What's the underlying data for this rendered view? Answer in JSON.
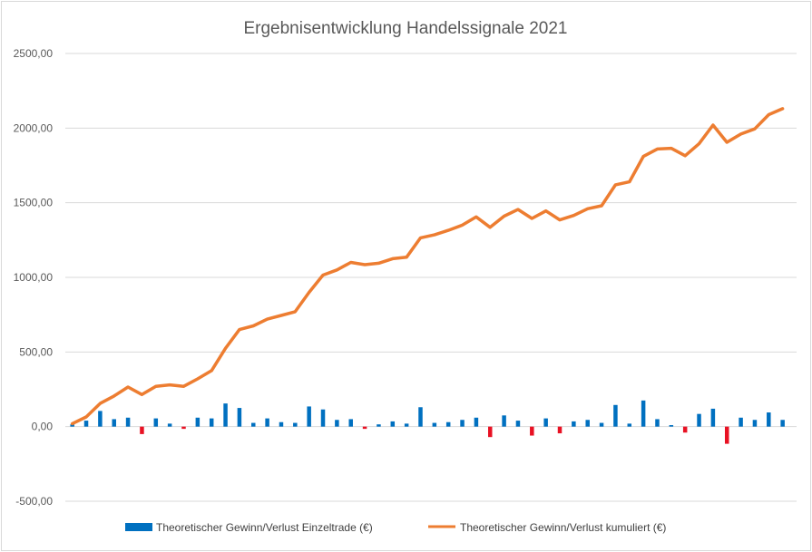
{
  "chart_data": {
    "type": "bar+line",
    "title": "Ergebnisentwicklung Handelssignale 2021",
    "xlabel": "",
    "ylabel": "",
    "ylim": [
      -500,
      2500
    ],
    "yticks": [
      "2500,00",
      "2000,00",
      "1500,00",
      "1000,00",
      "500,00",
      "0,00",
      "-500,00"
    ],
    "ytick_values": [
      2500,
      2000,
      1500,
      1000,
      500,
      0,
      -500
    ],
    "grid": true,
    "legend_position": "bottom",
    "colors": {
      "positive": "#0070c0",
      "negative": "#e81123",
      "line": "#ed7d31",
      "grid": "#d9d9d9",
      "text": "#595959"
    },
    "series": [
      {
        "name": "Theoretischer Gewinn/Verlust Einzeltrade (€)",
        "type": "bar",
        "values": [
          15,
          40,
          105,
          50,
          60,
          -50,
          55,
          20,
          -15,
          60,
          55,
          155,
          125,
          25,
          55,
          30,
          25,
          135,
          115,
          45,
          50,
          -15,
          15,
          35,
          20,
          130,
          25,
          30,
          45,
          60,
          -70,
          75,
          40,
          -60,
          55,
          -45,
          35,
          45,
          25,
          145,
          20,
          175,
          50,
          10,
          -40,
          85,
          120,
          -115,
          60,
          45,
          95,
          45
        ]
      },
      {
        "name": "Theoretischer Gewinn/Verlust kumuliert (€)",
        "type": "line",
        "values": [
          20,
          65,
          155,
          205,
          265,
          215,
          270,
          280,
          270,
          320,
          375,
          525,
          650,
          675,
          720,
          745,
          770,
          900,
          1015,
          1050,
          1100,
          1085,
          1095,
          1125,
          1135,
          1265,
          1285,
          1315,
          1350,
          1405,
          1335,
          1410,
          1455,
          1395,
          1445,
          1385,
          1415,
          1460,
          1480,
          1620,
          1640,
          1810,
          1860,
          1865,
          1815,
          1895,
          2020,
          1905,
          1960,
          1995,
          2090,
          2130
        ]
      }
    ]
  }
}
